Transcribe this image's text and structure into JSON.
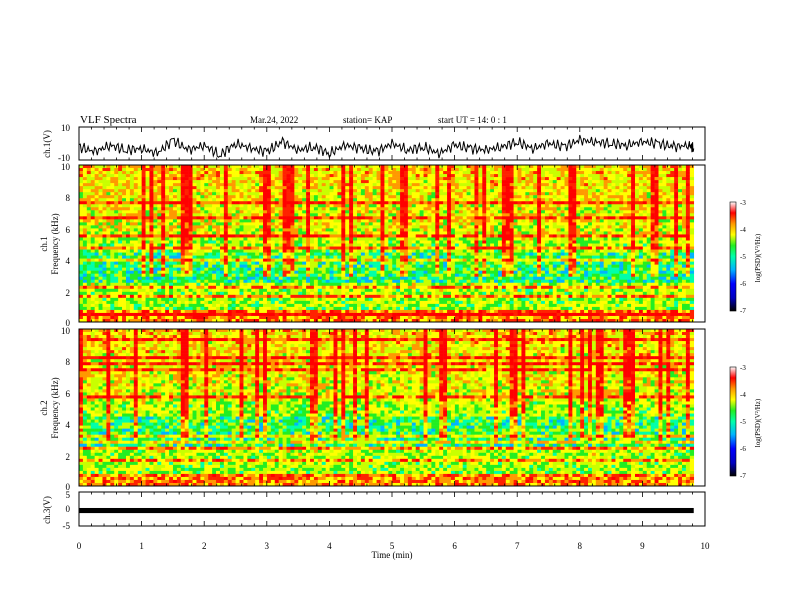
{
  "header": {
    "title": "VLF Spectra",
    "date": "Mar.24, 2022",
    "station": "station= KAP",
    "start": "start  UT =   14: 0  : 1"
  },
  "colors": {
    "colormap": [
      "#00007a",
      "#0000ff",
      "#00b4ff",
      "#00ffaa",
      "#22ee22",
      "#c8ff00",
      "#ffff00",
      "#ff9900",
      "#ff2200",
      "#ff0000",
      "#ffffff"
    ]
  },
  "chart_data": [
    {
      "type": "line",
      "ylabel": "ch.1(V)",
      "ylim": [
        -10,
        10
      ],
      "yticks": [
        "10",
        "-10"
      ],
      "x": [
        0,
        0.25,
        0.5,
        0.75,
        1.0,
        1.25,
        1.5,
        1.75,
        2.0,
        2.25,
        2.5,
        2.75,
        3.0,
        3.25,
        3.5,
        3.75,
        4.0,
        4.25,
        4.5,
        4.75,
        5.0,
        5.25,
        5.5,
        5.75,
        6.0,
        6.25,
        6.5,
        6.75,
        7.0,
        7.25,
        7.5,
        7.75,
        8.0,
        8.25,
        8.5,
        8.75,
        9.0,
        9.25,
        9.5,
        9.75,
        9.82
      ],
      "values": [
        -2,
        -5,
        -1,
        -4,
        -3,
        -6,
        2,
        -4,
        -1,
        -7,
        0,
        -3,
        -5,
        1,
        -4,
        -2,
        -6,
        -1,
        -3,
        -5,
        0,
        -4,
        -2,
        -6,
        -1,
        -3,
        -4,
        -2,
        1,
        -3,
        0,
        -2,
        2,
        1,
        0,
        -1,
        1,
        0,
        -2,
        -1,
        -3
      ]
    },
    {
      "type": "heatmap",
      "ylabel": "ch.1\nFrequency (kHz)",
      "ylim": [
        0,
        10
      ],
      "yticks": [
        "0",
        "2",
        "4",
        "6",
        "8",
        "10"
      ],
      "colorbar": {
        "label": "log(PSD)(V²/Hz)",
        "range": [
          -7,
          -3
        ],
        "ticks": [
          "-3",
          "-4",
          "-5",
          "-6",
          "-7"
        ]
      }
    },
    {
      "type": "heatmap",
      "ylabel": "ch.2\nFrequency (kHz)",
      "ylim": [
        0,
        10
      ],
      "yticks": [
        "0",
        "2",
        "4",
        "6",
        "8",
        "10"
      ],
      "colorbar": {
        "label": "log(PSD)(V²/Hz)",
        "range": [
          -7,
          -3
        ],
        "ticks": [
          "-3",
          "-4",
          "-5",
          "-6",
          "-7"
        ]
      }
    },
    {
      "type": "area",
      "ylabel": "ch.3(V)",
      "ylim": [
        -5,
        5
      ],
      "yticks": [
        "5",
        "0",
        "-5"
      ],
      "band": [
        -1.2,
        0.3
      ],
      "xlim": [
        0,
        9.82
      ]
    }
  ],
  "xaxis": {
    "label": "Time (min)",
    "ticks": [
      "0",
      "1",
      "2",
      "3",
      "4",
      "5",
      "6",
      "7",
      "8",
      "9",
      "10"
    ],
    "range": [
      0,
      10
    ]
  }
}
